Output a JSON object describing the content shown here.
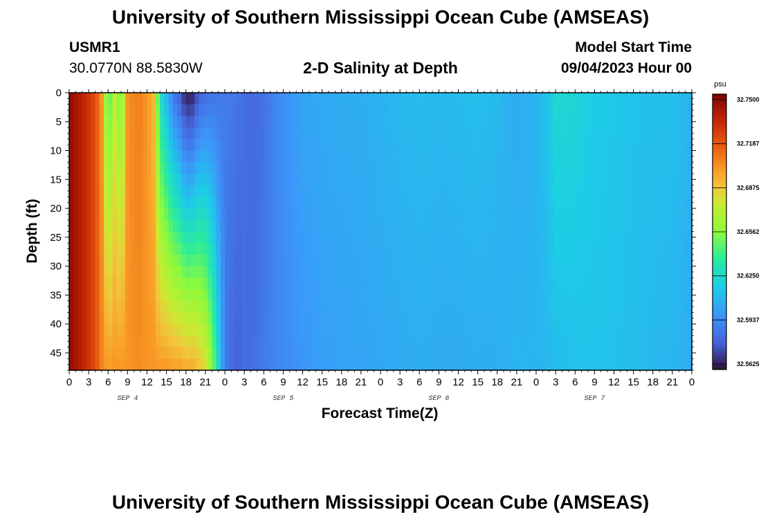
{
  "header": {
    "title": "University of Southern Mississippi Ocean Cube (AMSEAS)",
    "station_id": "USMR1",
    "station_coords": "30.0770N  88.5830W",
    "plot_name": "2-D Salinity at Depth",
    "start_label": "Model Start Time",
    "start_value": "09/04/2023 Hour 00"
  },
  "footer": {
    "title": "University of Southern Mississippi Ocean Cube (AMSEAS)"
  },
  "colorbar": {
    "unit": "psu",
    "tick_labels": [
      "32.7500",
      "32.7187",
      "32.6875",
      "32.6562",
      "32.6250",
      "32.5937",
      "32.5625"
    ],
    "min": 32.5625,
    "max": 32.75
  },
  "chart_data": {
    "type": "heatmap",
    "xlabel": "Forecast Time(Z)",
    "ylabel": "Depth (ft)",
    "x_tick_labels": [
      "0",
      "3",
      "6",
      "9",
      "12",
      "15",
      "18",
      "21",
      "0",
      "3",
      "6",
      "9",
      "12",
      "15",
      "18",
      "21",
      "0",
      "3",
      "6",
      "9",
      "12",
      "15",
      "18",
      "21",
      "0",
      "3",
      "6",
      "9",
      "12",
      "15",
      "18",
      "21",
      "0"
    ],
    "day_labels": [
      "SEP 4",
      "SEP 5",
      "SEP 6",
      "SEP 7"
    ],
    "y_tick_labels": [
      "0",
      "5",
      "10",
      "15",
      "20",
      "25",
      "30",
      "35",
      "40",
      "45"
    ],
    "xlim_hours": [
      0,
      96
    ],
    "ylim_ft": [
      0,
      48
    ],
    "y_inverted": true,
    "value_range": [
      32.5625,
      32.75
    ],
    "unit": "psu",
    "colormap": "turbo",
    "profile": {
      "hours": [
        0,
        2,
        4,
        5,
        6,
        7,
        8,
        9,
        10,
        11,
        12,
        13,
        14,
        15,
        16,
        17,
        18,
        19,
        20,
        21,
        22,
        23,
        24,
        26,
        27,
        28,
        30,
        32,
        34,
        36,
        39,
        42,
        45,
        48,
        51,
        54,
        57,
        60,
        63,
        66,
        69,
        72,
        74,
        75,
        77,
        78,
        80,
        82,
        84,
        86,
        88,
        90,
        92,
        94,
        96
      ],
      "surface_psu": [
        32.745,
        32.735,
        32.72,
        32.7,
        32.64,
        32.67,
        32.65,
        32.7,
        32.705,
        32.705,
        32.7,
        32.69,
        32.63,
        32.61,
        32.59,
        32.58,
        32.565,
        32.567,
        32.58,
        32.585,
        32.588,
        32.588,
        32.59,
        32.588,
        32.585,
        32.583,
        32.586,
        32.595,
        32.6,
        32.605,
        32.607,
        32.608,
        32.608,
        32.61,
        32.612,
        32.613,
        32.612,
        32.613,
        32.614,
        32.612,
        32.607,
        32.61,
        32.617,
        32.625,
        32.624,
        32.623,
        32.62,
        32.618,
        32.617,
        32.616,
        32.615,
        32.614,
        32.615,
        32.613,
        32.61
      ],
      "bottom_psu": [
        32.745,
        32.735,
        32.72,
        32.705,
        32.698,
        32.7,
        32.7,
        32.7,
        32.702,
        32.702,
        32.7,
        32.7,
        32.7,
        32.7,
        32.698,
        32.698,
        32.695,
        32.695,
        32.69,
        32.68,
        32.66,
        32.625,
        32.59,
        32.58,
        32.585,
        32.584,
        32.59,
        32.594,
        32.597,
        32.6,
        32.603,
        32.604,
        32.605,
        32.606,
        32.607,
        32.608,
        32.607,
        32.607,
        32.608,
        32.608,
        32.611,
        32.61,
        32.612,
        32.613,
        32.614,
        32.615,
        32.615,
        32.615,
        32.615,
        32.614,
        32.613,
        32.612,
        32.611,
        32.61,
        32.607
      ]
    }
  }
}
